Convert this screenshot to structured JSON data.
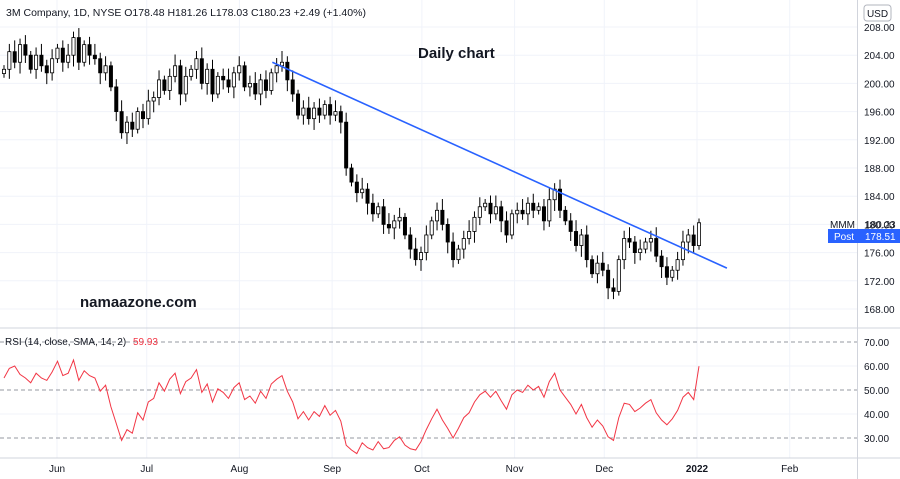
{
  "header": {
    "legend": "3M Company, 1D, NYSE O178.48 H181.26 L178.03 C180.23 +2.49 (+1.40%)"
  },
  "annotations": {
    "title": "Daily chart",
    "watermark": "namaazone.com"
  },
  "price_axis": {
    "currency": "USD",
    "ticks": [
      "208.00",
      "204.00",
      "200.00",
      "196.00",
      "192.00",
      "188.00",
      "184.00",
      "180.00",
      "176.00",
      "172.00",
      "168.00"
    ]
  },
  "price_labels": {
    "symbol": "MMM",
    "last_value": "180.23",
    "post_label": "Post",
    "post_value": "178.51"
  },
  "rsi_panel": {
    "label": "RSI (14, close, SMA, 14, 2)",
    "value": "59.93",
    "ticks": [
      "70.00",
      "60.00",
      "50.00",
      "40.00",
      "30.00"
    ]
  },
  "time_axis": {
    "labels": [
      "Jun",
      "Jul",
      "Aug",
      "Sep",
      "Oct",
      "Nov",
      "Dec",
      "2022",
      "Feb"
    ]
  },
  "colors": {
    "up": "#ffffff",
    "down": "#000000",
    "trendline": "#2962ff",
    "rsi_line": "#f23645",
    "post_badge": "#2962ff"
  },
  "chart_data": [
    {
      "type": "candlestick",
      "title": "Daily chart",
      "ylim": [
        166,
        210
      ],
      "x_range": [
        "2021-05-05",
        "2022-02-25"
      ],
      "close": [
        202.0,
        204.5,
        203.0,
        205.5,
        204.0,
        202.0,
        204.0,
        202.5,
        201.5,
        203.5,
        205.0,
        203.0,
        204.0,
        206.5,
        203.0,
        205.5,
        204.0,
        203.5,
        201.5,
        202.5,
        199.5,
        196.0,
        193.0,
        194.5,
        193.5,
        196.0,
        195.0,
        197.5,
        198.0,
        200.5,
        199.0,
        201.0,
        202.5,
        198.5,
        201.0,
        202.0,
        203.5,
        200.0,
        202.0,
        198.5,
        201.0,
        200.5,
        199.5,
        201.5,
        202.5,
        199.5,
        200.0,
        198.5,
        200.5,
        199.0,
        201.5,
        202.5,
        203.0,
        200.5,
        198.5,
        195.5,
        196.5,
        195.0,
        196.5,
        195.5,
        197.0,
        195.5,
        196.0,
        194.5,
        188.0,
        186.0,
        184.5,
        185.0,
        183.0,
        181.5,
        182.5,
        180.0,
        179.5,
        180.5,
        181.0,
        178.5,
        176.5,
        175.0,
        176.0,
        178.5,
        180.5,
        182.0,
        180.0,
        177.5,
        175.0,
        176.5,
        178.0,
        179.0,
        181.0,
        182.5,
        183.0,
        181.5,
        182.5,
        180.5,
        178.5,
        181.5,
        182.0,
        181.5,
        183.0,
        182.0,
        182.5,
        180.5,
        183.5,
        185.0,
        182.0,
        180.5,
        179.0,
        177.0,
        178.5,
        175.0,
        173.0,
        174.5,
        173.5,
        171.0,
        170.5,
        175.0,
        178.0,
        177.5,
        176.0,
        176.5,
        177.5,
        178.0,
        175.5,
        174.0,
        172.5,
        173.5,
        175.0,
        177.5,
        178.5,
        177.0,
        180.23
      ],
      "trendline": {
        "from": [
          "2021-08-12",
          203.0
        ],
        "to": [
          "2022-01-11",
          173.8
        ]
      },
      "last_close": 180.23,
      "post_price": 178.51,
      "grid": true
    },
    {
      "type": "line",
      "title": "RSI (14, close, SMA, 14, 2)",
      "ylim": [
        22,
        74
      ],
      "reference_lines": [
        70,
        50,
        30
      ],
      "values": [
        55.0,
        59.0,
        60.0,
        56.5,
        55.0,
        53.0,
        57.0,
        55.0,
        54.0,
        57.5,
        62.0,
        56.0,
        57.0,
        62.5,
        54.0,
        58.0,
        56.0,
        55.0,
        49.5,
        52.0,
        43.0,
        36.0,
        29.0,
        33.5,
        32.0,
        40.5,
        37.5,
        45.0,
        46.5,
        53.0,
        49.5,
        54.5,
        57.0,
        48.5,
        53.5,
        55.0,
        58.5,
        49.0,
        52.5,
        45.0,
        50.5,
        49.0,
        46.5,
        51.0,
        53.0,
        46.0,
        47.5,
        44.5,
        49.5,
        46.5,
        52.5,
        54.5,
        56.0,
        49.5,
        45.0,
        38.0,
        41.0,
        37.5,
        41.0,
        39.0,
        43.5,
        39.5,
        41.5,
        37.0,
        27.0,
        25.0,
        23.5,
        28.0,
        26.0,
        25.0,
        28.5,
        25.5,
        26.0,
        29.0,
        30.5,
        27.0,
        25.5,
        25.0,
        28.5,
        33.5,
        38.0,
        42.0,
        37.5,
        34.0,
        30.0,
        34.0,
        38.5,
        40.5,
        45.0,
        48.0,
        49.5,
        47.0,
        49.5,
        45.5,
        42.0,
        48.0,
        50.0,
        49.0,
        52.0,
        50.0,
        51.5,
        47.0,
        53.5,
        57.0,
        50.0,
        47.0,
        44.0,
        40.0,
        44.0,
        38.5,
        34.5,
        37.5,
        35.0,
        30.5,
        29.0,
        38.5,
        44.5,
        44.0,
        41.0,
        42.5,
        44.5,
        46.0,
        40.5,
        37.5,
        35.5,
        38.0,
        41.5,
        47.0,
        49.0,
        46.0,
        59.93
      ],
      "last_value": 59.93
    }
  ]
}
